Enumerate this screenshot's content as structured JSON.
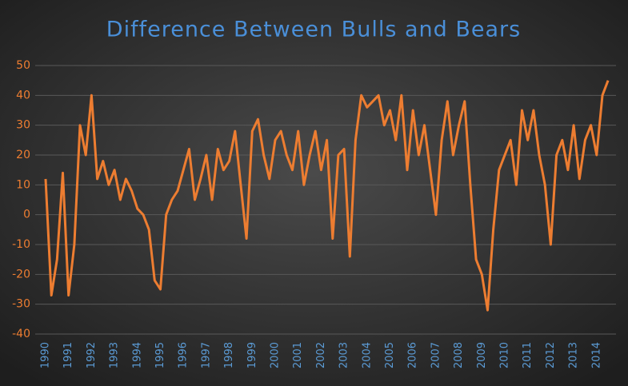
{
  "chart_data": {
    "type": "line",
    "title": "Difference Between Bulls and Bears",
    "categories": [
      "1990",
      null,
      null,
      null,
      "1991",
      null,
      null,
      null,
      "1992",
      null,
      null,
      null,
      "1993",
      null,
      null,
      null,
      "1994",
      null,
      null,
      null,
      "1995",
      null,
      null,
      null,
      "1996",
      null,
      null,
      null,
      "1997",
      null,
      null,
      null,
      "1998",
      null,
      null,
      null,
      "1999",
      null,
      null,
      null,
      "2000",
      null,
      null,
      null,
      "2001",
      null,
      null,
      null,
      "2002",
      null,
      null,
      null,
      "2003",
      null,
      null,
      null,
      "2004",
      null,
      null,
      null,
      "2005",
      null,
      null,
      null,
      "2006",
      null,
      null,
      null,
      "2007",
      null,
      null,
      null,
      "2008",
      null,
      null,
      null,
      "2009",
      null,
      null,
      null,
      "2010",
      null,
      null,
      null,
      "2011",
      null,
      null,
      null,
      "2012",
      null,
      null,
      null,
      "2013",
      null,
      null,
      null,
      "2014",
      null,
      null
    ],
    "series": [
      {
        "color": "#ed7d31",
        "values": [
          12,
          -27,
          -15,
          14,
          -27,
          -10,
          30,
          20,
          40,
          12,
          18,
          10,
          15,
          5,
          12,
          8,
          2,
          0,
          -5,
          -22,
          -25,
          0,
          5,
          8,
          15,
          22,
          5,
          12,
          20,
          5,
          22,
          15,
          18,
          28,
          10,
          -8,
          28,
          32,
          20,
          12,
          25,
          28,
          20,
          15,
          28,
          10,
          20,
          28,
          15,
          25,
          -8,
          20,
          22,
          -14,
          25,
          40,
          36,
          38,
          40,
          30,
          35,
          25,
          40,
          15,
          35,
          20,
          30,
          15,
          0,
          25,
          38,
          20,
          30,
          38,
          10,
          -15,
          -20,
          -32,
          -5,
          15,
          20,
          25,
          10,
          35,
          25,
          35,
          20,
          10,
          -10,
          20,
          25,
          15,
          30,
          12,
          25,
          30,
          20,
          40,
          45
        ]
      }
    ],
    "ylim": [
      -40,
      50
    ],
    "yticks": [
      -40,
      -30,
      -20,
      -10,
      0,
      10,
      20,
      30,
      40,
      50
    ],
    "grid": true
  }
}
